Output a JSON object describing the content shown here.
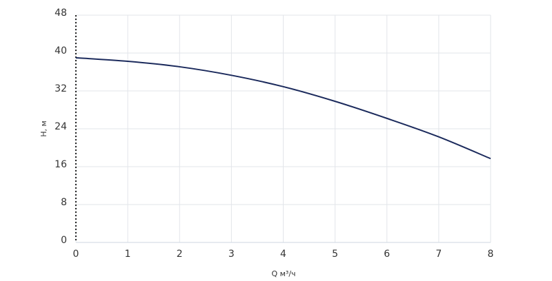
{
  "chart_data": {
    "type": "line",
    "x_label": "Q м³/ч",
    "y_label": "H, м",
    "x": [
      0,
      1,
      2,
      3,
      4,
      5,
      6,
      7,
      8
    ],
    "series": [
      {
        "name": "H",
        "color": "#1b2a5c",
        "values": [
          39,
          38.25,
          37.1,
          35.3,
          32.9,
          29.8,
          26.2,
          22.3,
          17.7
        ]
      }
    ],
    "xlim": [
      0,
      8
    ],
    "xticks": [
      0,
      1,
      2,
      3,
      4,
      5,
      6,
      7,
      8
    ],
    "ylim": [
      0,
      48
    ],
    "yticks": [
      0,
      8,
      16,
      24,
      32,
      40,
      48
    ],
    "grid": true
  }
}
